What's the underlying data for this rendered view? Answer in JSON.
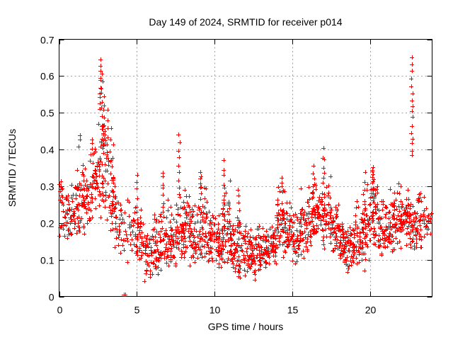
{
  "figure": {
    "background": "#ffffff",
    "text_color": "#000000"
  },
  "chart_data": {
    "type": "scatter",
    "title": "Day 149 of 2024, SRMTID for receiver p014",
    "xlabel": "GPS time / hours",
    "ylabel": "SRMTID / TECUs",
    "xlim": [
      0,
      24
    ],
    "ylim": [
      0,
      0.7
    ],
    "xticks": [
      {
        "v": 0,
        "label": "0"
      },
      {
        "v": 5,
        "label": "5"
      },
      {
        "v": 10,
        "label": "10"
      },
      {
        "v": 15,
        "label": "15"
      },
      {
        "v": 20,
        "label": "20"
      }
    ],
    "yticks": [
      {
        "v": 0,
        "label": "0"
      },
      {
        "v": 0.1,
        "label": "0.1"
      },
      {
        "v": 0.2,
        "label": "0.2"
      },
      {
        "v": 0.3,
        "label": "0.3"
      },
      {
        "v": 0.4,
        "label": "0.4"
      },
      {
        "v": 0.5,
        "label": "0.5"
      },
      {
        "v": 0.6,
        "label": "0.6"
      },
      {
        "v": 0.7,
        "label": "0.7"
      }
    ],
    "grid": {
      "style": "dotted",
      "color": "#a0a0a0",
      "dash": "2 3.5"
    },
    "axis_color": "#000000",
    "legend": "none",
    "marker": {
      "shape": "plus",
      "size": 7,
      "color": "#ff0000"
    },
    "seed": 149,
    "note_peaks": {
      "max_value": 0.655,
      "max_at_hour": 2.7,
      "secondary_peak_value": 0.65,
      "secondary_peak_at_hour": 22.7,
      "min_band_hours": "11-13",
      "min_band_value": 0.05
    },
    "density_bins": {
      "bin_width_hours": 0.5,
      "columns": [
        "start_hour",
        "count",
        "y_min",
        "y_max",
        "y_mode"
      ],
      "bins": [
        [
          0.0,
          28,
          0.14,
          0.33,
          0.25
        ],
        [
          0.5,
          36,
          0.13,
          0.33,
          0.22
        ],
        [
          1.0,
          40,
          0.15,
          0.36,
          0.26
        ],
        [
          1.5,
          40,
          0.15,
          0.38,
          0.28
        ],
        [
          2.0,
          42,
          0.17,
          0.42,
          0.3
        ],
        [
          2.5,
          46,
          0.2,
          0.5,
          0.33
        ],
        [
          3.0,
          40,
          0.15,
          0.46,
          0.28
        ],
        [
          3.5,
          34,
          0.1,
          0.32,
          0.2
        ],
        [
          4.0,
          18,
          0.08,
          0.3,
          0.16
        ],
        [
          4.5,
          24,
          0.09,
          0.28,
          0.15
        ],
        [
          5.0,
          30,
          0.08,
          0.26,
          0.14
        ],
        [
          5.5,
          36,
          0.03,
          0.19,
          0.11
        ],
        [
          6.0,
          40,
          0.04,
          0.24,
          0.12
        ],
        [
          6.5,
          40,
          0.06,
          0.28,
          0.14
        ],
        [
          7.0,
          40,
          0.06,
          0.26,
          0.14
        ],
        [
          7.5,
          42,
          0.08,
          0.3,
          0.17
        ],
        [
          8.0,
          42,
          0.08,
          0.33,
          0.17
        ],
        [
          8.5,
          40,
          0.07,
          0.28,
          0.14
        ],
        [
          9.0,
          42,
          0.08,
          0.32,
          0.16
        ],
        [
          9.5,
          40,
          0.07,
          0.25,
          0.13
        ],
        [
          10.0,
          40,
          0.07,
          0.24,
          0.13
        ],
        [
          10.5,
          42,
          0.08,
          0.32,
          0.15
        ],
        [
          11.0,
          42,
          0.06,
          0.22,
          0.12
        ],
        [
          11.5,
          42,
          0.05,
          0.25,
          0.12
        ],
        [
          12.0,
          42,
          0.05,
          0.2,
          0.11
        ],
        [
          12.5,
          42,
          0.04,
          0.2,
          0.11
        ],
        [
          13.0,
          42,
          0.06,
          0.2,
          0.12
        ],
        [
          13.5,
          42,
          0.08,
          0.22,
          0.13
        ],
        [
          14.0,
          46,
          0.1,
          0.31,
          0.19
        ],
        [
          14.5,
          42,
          0.1,
          0.28,
          0.16
        ],
        [
          15.0,
          40,
          0.08,
          0.25,
          0.14
        ],
        [
          15.5,
          40,
          0.1,
          0.31,
          0.16
        ],
        [
          16.0,
          42,
          0.12,
          0.34,
          0.2
        ],
        [
          16.5,
          42,
          0.12,
          0.36,
          0.22
        ],
        [
          17.0,
          42,
          0.12,
          0.37,
          0.2
        ],
        [
          17.5,
          42,
          0.1,
          0.26,
          0.16
        ],
        [
          18.0,
          46,
          0.08,
          0.22,
          0.13
        ],
        [
          18.5,
          46,
          0.05,
          0.2,
          0.12
        ],
        [
          19.0,
          40,
          0.07,
          0.28,
          0.15
        ],
        [
          19.5,
          40,
          0.08,
          0.32,
          0.18
        ],
        [
          20.0,
          46,
          0.13,
          0.36,
          0.24
        ],
        [
          20.5,
          42,
          0.1,
          0.28,
          0.17
        ],
        [
          21.0,
          40,
          0.1,
          0.3,
          0.18
        ],
        [
          21.5,
          42,
          0.12,
          0.32,
          0.21
        ],
        [
          22.0,
          46,
          0.13,
          0.31,
          0.22
        ],
        [
          22.5,
          44,
          0.1,
          0.3,
          0.2
        ],
        [
          23.0,
          34,
          0.12,
          0.3,
          0.2
        ],
        [
          23.5,
          20,
          0.14,
          0.26,
          0.2
        ]
      ]
    },
    "spikes": {
      "columns": [
        "hour",
        "y_min",
        "y_max",
        "count"
      ],
      "list": [
        [
          1.3,
          0.4,
          0.45,
          3
        ],
        [
          2.1,
          0.4,
          0.43,
          3
        ],
        [
          2.65,
          0.5,
          0.655,
          10
        ],
        [
          2.75,
          0.42,
          0.62,
          10
        ],
        [
          2.9,
          0.4,
          0.55,
          8
        ],
        [
          3.1,
          0.38,
          0.52,
          6
        ],
        [
          3.3,
          0.35,
          0.47,
          4
        ],
        [
          5.0,
          0.15,
          0.345,
          9
        ],
        [
          6.7,
          0.25,
          0.35,
          6
        ],
        [
          7.7,
          0.27,
          0.445,
          9
        ],
        [
          9.1,
          0.28,
          0.345,
          7
        ],
        [
          10.6,
          0.15,
          0.375,
          12
        ],
        [
          11.55,
          0.18,
          0.3,
          6
        ],
        [
          14.35,
          0.28,
          0.33,
          5
        ],
        [
          16.35,
          0.26,
          0.36,
          6
        ],
        [
          17.0,
          0.3,
          0.405,
          7
        ],
        [
          19.7,
          0.06,
          0.345,
          12
        ],
        [
          20.15,
          0.28,
          0.36,
          7
        ],
        [
          22.7,
          0.37,
          0.655,
          16
        ]
      ]
    },
    "outlier_points": [
      [
        4.15,
        0.004
      ],
      [
        4.24,
        0.004
      ]
    ]
  }
}
